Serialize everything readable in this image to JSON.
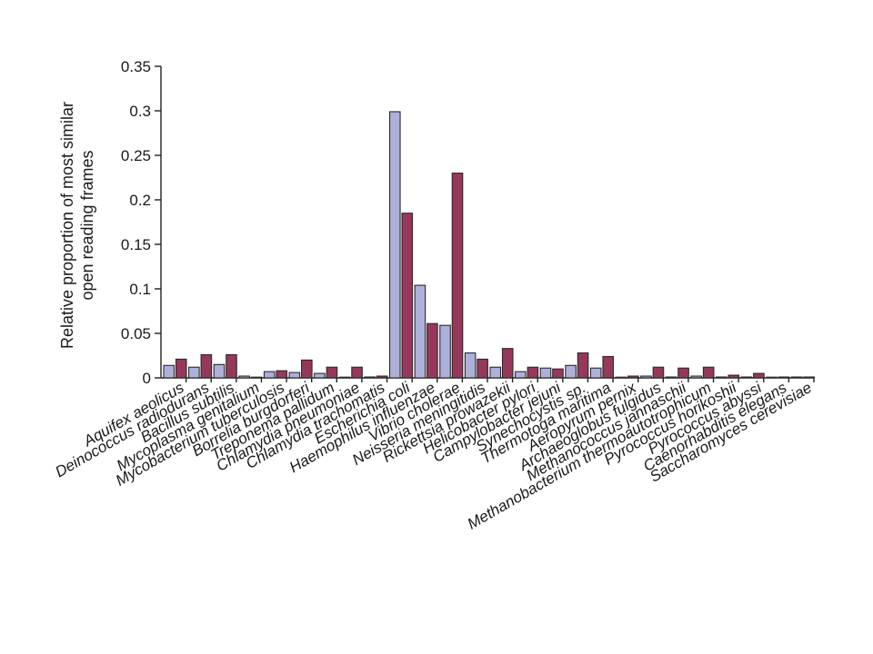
{
  "chart_data": {
    "type": "bar",
    "ylabel": [
      "Relative proportion of most similar",
      "open reading frames"
    ],
    "ylim": [
      0,
      0.35
    ],
    "yticks": [
      0,
      0.05,
      0.1,
      0.15,
      0.2,
      0.25,
      0.3,
      0.35
    ],
    "ytick_labels": [
      "0",
      "0.05",
      "0.1",
      "0.15",
      "0.2",
      "0.25",
      "0.3",
      "0.35"
    ],
    "grid": false,
    "categories": [
      "Aquifex aeolicus",
      "Deinococcus radiodurans",
      "Bacillus subtilis",
      "Mycoplasma genitalium",
      "Mycobacterium tuberculosis",
      "Borrelia burgdorferi",
      "Treponema pallidum",
      "Chlamydia pneumoniae",
      "Chlamydia trachomatis",
      "Escherichia coli",
      "Haemophilus influenzae",
      "Vibrio cholerae",
      "Neisseria meningitidis",
      "Rickettsia prowazekii",
      "Helicobacter pylori",
      "Campylobacter jejuni",
      "Synechocystis sp.",
      "Thermotoga maritima",
      "Aeropyrum pernix",
      "Archaeoglobus fulgidus",
      "Methanococcus jannaschii",
      "Methanobacterium thermoautotrophicum",
      "Pyrococcus horikoshii",
      "Pyrococcus abyssi",
      "Caenorhabditis elegans",
      "Saccharomyces cerevisiae"
    ],
    "series": [
      {
        "color": "#aeb0dc",
        "values": [
          0.014,
          0.012,
          0.015,
          0.002,
          0.007,
          0.006,
          0.005,
          0.0,
          0.001,
          0.299,
          0.104,
          0.059,
          0.028,
          0.012,
          0.007,
          0.011,
          0.014,
          0.011,
          0.0,
          0.002,
          0.001,
          0.002,
          0.001,
          0.001,
          0.0,
          0.001
        ]
      },
      {
        "color": "#96385c",
        "values": [
          0.021,
          0.026,
          0.026,
          0.0,
          0.008,
          0.02,
          0.012,
          0.012,
          0.002,
          0.185,
          0.061,
          0.23,
          0.021,
          0.033,
          0.012,
          0.01,
          0.028,
          0.024,
          0.002,
          0.012,
          0.011,
          0.012,
          0.003,
          0.005,
          0.001,
          0.001
        ]
      }
    ]
  }
}
